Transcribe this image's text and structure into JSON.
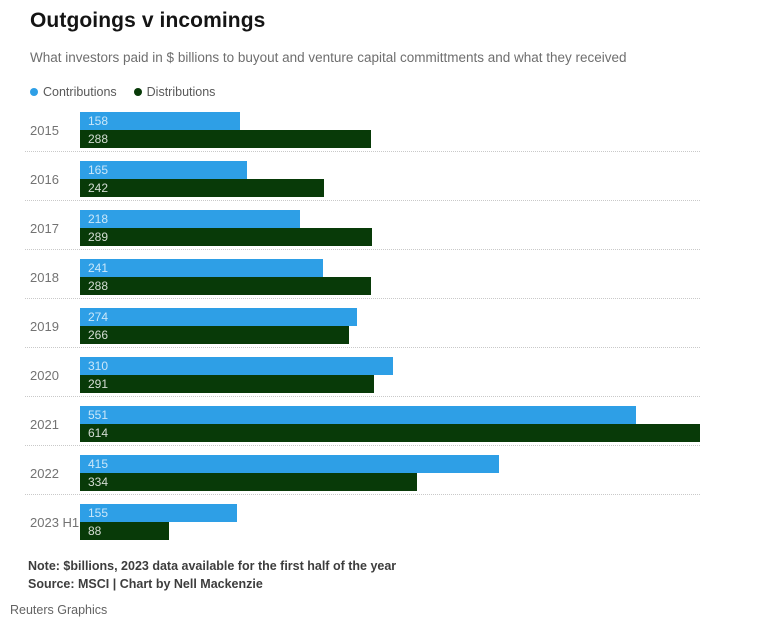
{
  "title": "Outgoings v incomings",
  "subtitle": "What investors paid in $ billions to buyout and venture capital committments and what they received",
  "legend": [
    {
      "label": "Contributions",
      "color": "#2e9fe6"
    },
    {
      "label": "Distributions",
      "color": "#083a08"
    }
  ],
  "chart_data": {
    "type": "bar",
    "orientation": "horizontal",
    "title": "Outgoings v incomings",
    "categories": [
      "2015",
      "2016",
      "2017",
      "2018",
      "2019",
      "2020",
      "2021",
      "2022",
      "2023 H1"
    ],
    "series": [
      {
        "name": "Contributions",
        "color": "#2e9fe6",
        "values": [
          158,
          165,
          218,
          241,
          274,
          310,
          551,
          415,
          155
        ]
      },
      {
        "name": "Distributions",
        "color": "#083a08",
        "values": [
          288,
          242,
          289,
          288,
          266,
          291,
          614,
          334,
          88
        ]
      }
    ],
    "xlim": [
      0,
      614
    ],
    "value_labels": "inside-left",
    "grid": false,
    "row_separator": "dotted",
    "legend_position": "top-left",
    "units": "$ billions"
  },
  "note": "Note: $billions, 2023 data available for the first half of the year",
  "source": "Source: MSCI | Chart by Nell Mackenzie",
  "credit": "Reuters Graphics"
}
